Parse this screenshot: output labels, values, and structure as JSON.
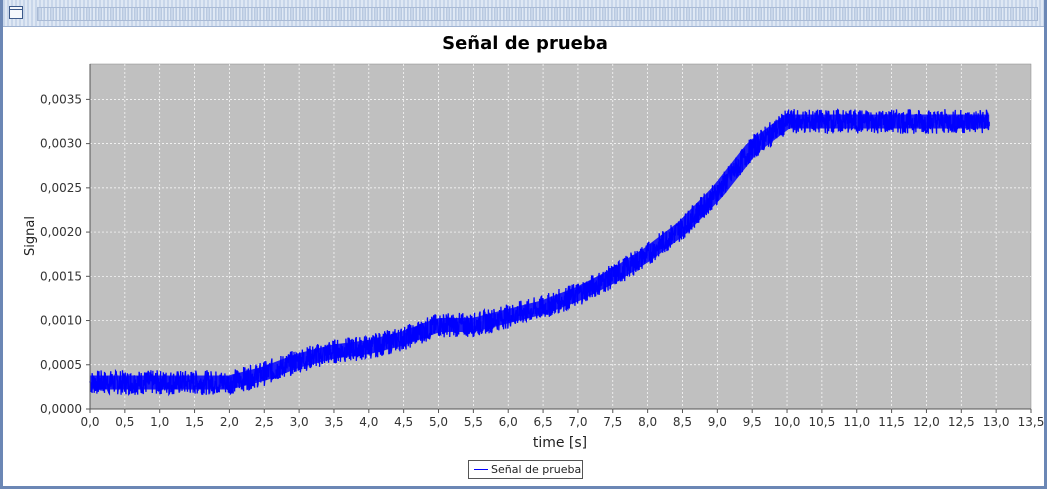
{
  "window": {
    "icon": "window-icon"
  },
  "chart_data": {
    "type": "line",
    "title": "Señal de prueba",
    "xlabel": "time [s]",
    "ylabel": "Signal",
    "xlim": [
      0,
      13.5
    ],
    "ylim": [
      0,
      0.0039
    ],
    "x_ticks": [
      "0,0",
      "0,5",
      "1,0",
      "1,5",
      "2,0",
      "2,5",
      "3,0",
      "3,5",
      "4,0",
      "4,5",
      "5,0",
      "5,5",
      "6,0",
      "6,5",
      "7,0",
      "7,5",
      "8,0",
      "8,5",
      "9,0",
      "9,5",
      "10,0",
      "10,5",
      "11,0",
      "11,5",
      "12,0",
      "12,5",
      "13,0",
      "13,5"
    ],
    "y_ticks": [
      "0,0000",
      "0,0005",
      "0,0010",
      "0,0015",
      "0,0020",
      "0,0025",
      "0,0030",
      "0,0035"
    ],
    "grid": true,
    "legend_position": "bottom-center",
    "series": [
      {
        "name": "Señal de prueba",
        "color": "#0000ff",
        "noise_band": 0.00028,
        "x": [
          0.0,
          1.0,
          2.0,
          2.5,
          3.0,
          3.5,
          4.0,
          4.5,
          5.0,
          5.5,
          6.0,
          6.5,
          7.0,
          7.5,
          8.0,
          8.5,
          9.0,
          9.5,
          10.0,
          10.5,
          11.0,
          11.5,
          12.0,
          12.5,
          12.9
        ],
        "y": [
          0.0003,
          0.0003,
          0.0003,
          0.0004,
          0.00055,
          0.00065,
          0.0007,
          0.0008,
          0.00095,
          0.00095,
          0.00105,
          0.00115,
          0.0013,
          0.0015,
          0.00175,
          0.00205,
          0.00245,
          0.00295,
          0.00325,
          0.00325,
          0.00325,
          0.00325,
          0.00325,
          0.00325,
          0.00325
        ]
      }
    ],
    "background_color": "#c0c0c0",
    "grid_color": "#ffffff"
  }
}
